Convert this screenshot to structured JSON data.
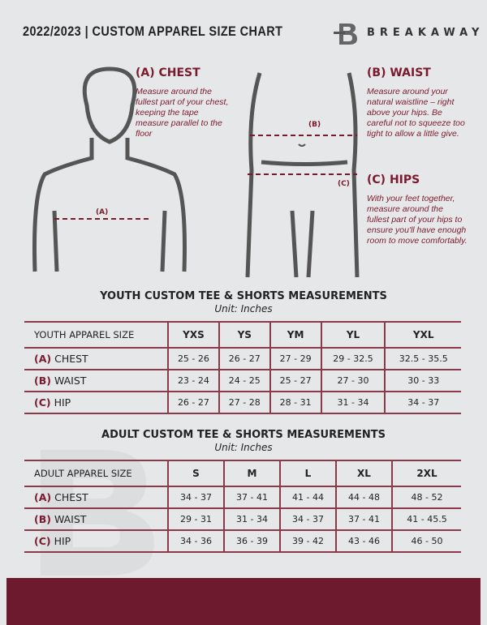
{
  "header": {
    "title": "2022/2023  |  CUSTOM APPAREL SIZE CHART",
    "brand": "BREAKAWAY",
    "logo_letter": "B"
  },
  "measures": {
    "chest": {
      "heading": "(A) CHEST",
      "text": "Measure around the fullest part of your chest, keeping the tape measure parallel to the floor",
      "marker": "(A)"
    },
    "waist": {
      "heading": "(B) WAIST",
      "text": "Measure around your natural waistline – right above your hips. Be careful not to squeeze too tight to allow a little give.",
      "marker": "(B)"
    },
    "hips": {
      "heading": "(C) HIPS",
      "text": "With your feet together, measure around the fullest part of your hips to ensure you'll have enough room to move comfortably.",
      "marker": "(C)"
    }
  },
  "youth": {
    "title": "YOUTH CUSTOM TEE & SHORTS MEASUREMENTS",
    "unit": "Unit: Inches",
    "header": "YOUTH APPAREL SIZE",
    "sizes": [
      "YXS",
      "YS",
      "YM",
      "YL",
      "YXL"
    ],
    "rows": [
      {
        "code": "(A)",
        "name": "CHEST",
        "values": [
          "25 - 26",
          "26 - 27",
          "27 - 29",
          "29 - 32.5",
          "32.5 - 35.5"
        ]
      },
      {
        "code": "(B)",
        "name": "WAIST",
        "values": [
          "23 - 24",
          "24 - 25",
          "25 - 27",
          "27 - 30",
          "30 - 33"
        ]
      },
      {
        "code": "(C)",
        "name": "HIP",
        "values": [
          "26 - 27",
          "27 - 28",
          "28 - 31",
          "31 - 34",
          "34 - 37"
        ]
      }
    ]
  },
  "adult": {
    "title": "ADULT CUSTOM TEE & SHORTS MEASUREMENTS",
    "unit": "Unit: Inches",
    "header": "ADULT APPAREL SIZE",
    "sizes": [
      "S",
      "M",
      "L",
      "XL",
      "2XL"
    ],
    "rows": [
      {
        "code": "(A)",
        "name": "CHEST",
        "values": [
          "34 - 37",
          "37 - 41",
          "41 - 44",
          "44 - 48",
          "48 - 52"
        ]
      },
      {
        "code": "(B)",
        "name": "WAIST",
        "values": [
          "29 - 31",
          "31 - 34",
          "34 - 37",
          "37 - 41",
          "41 - 45.5"
        ]
      },
      {
        "code": "(C)",
        "name": "HIP",
        "values": [
          "34 - 36",
          "36 - 39",
          "39 - 42",
          "43 - 46",
          "46 - 50"
        ]
      }
    ]
  },
  "colors": {
    "accent": "#7a1a2e",
    "footer": "#6e1a2e",
    "background": "#e6e7e8"
  }
}
